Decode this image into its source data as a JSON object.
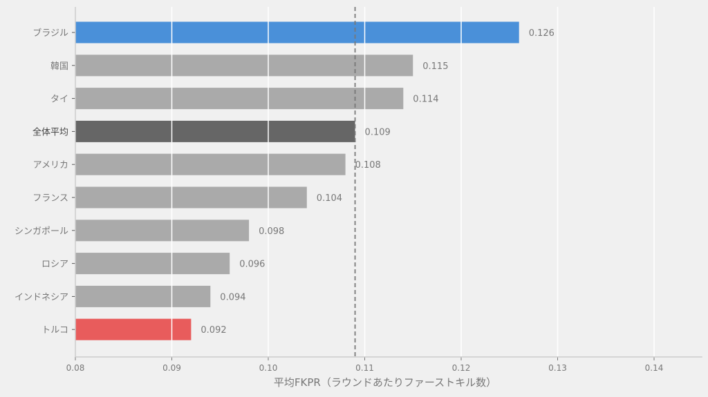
{
  "chart_data": {
    "type": "bar",
    "orientation": "horizontal",
    "title": "",
    "xlabel": "平均FKPR（ラウンドあたりファーストキル数）",
    "ylabel": "",
    "xlim": [
      0.08,
      0.145
    ],
    "xticks": [
      0.08,
      0.09,
      0.1,
      0.11,
      0.12,
      0.13,
      0.14
    ],
    "xtick_labels": [
      "0.08",
      "0.09",
      "0.10",
      "0.11",
      "0.12",
      "0.13",
      "0.14"
    ],
    "grid": "vertical",
    "categories": [
      "ブラジル",
      "韓国",
      "タイ",
      "全体平均",
      "アメリカ",
      "フランス",
      "シンガポール",
      "ロシア",
      "インドネシア",
      "トルコ"
    ],
    "values": [
      0.126,
      0.115,
      0.114,
      0.109,
      0.108,
      0.104,
      0.098,
      0.096,
      0.094,
      0.092
    ],
    "value_labels": [
      "0.126",
      "0.115",
      "0.114",
      "0.109",
      "0.108",
      "0.104",
      "0.098",
      "0.096",
      "0.094",
      "0.092"
    ],
    "colors": [
      "#4a90d9",
      "#aaaaaa",
      "#aaaaaa",
      "#666666",
      "#aaaaaa",
      "#aaaaaa",
      "#aaaaaa",
      "#aaaaaa",
      "#aaaaaa",
      "#e85c5c"
    ],
    "reference_line": {
      "value": 0.109,
      "style": "dashed",
      "color": "#777777"
    }
  }
}
